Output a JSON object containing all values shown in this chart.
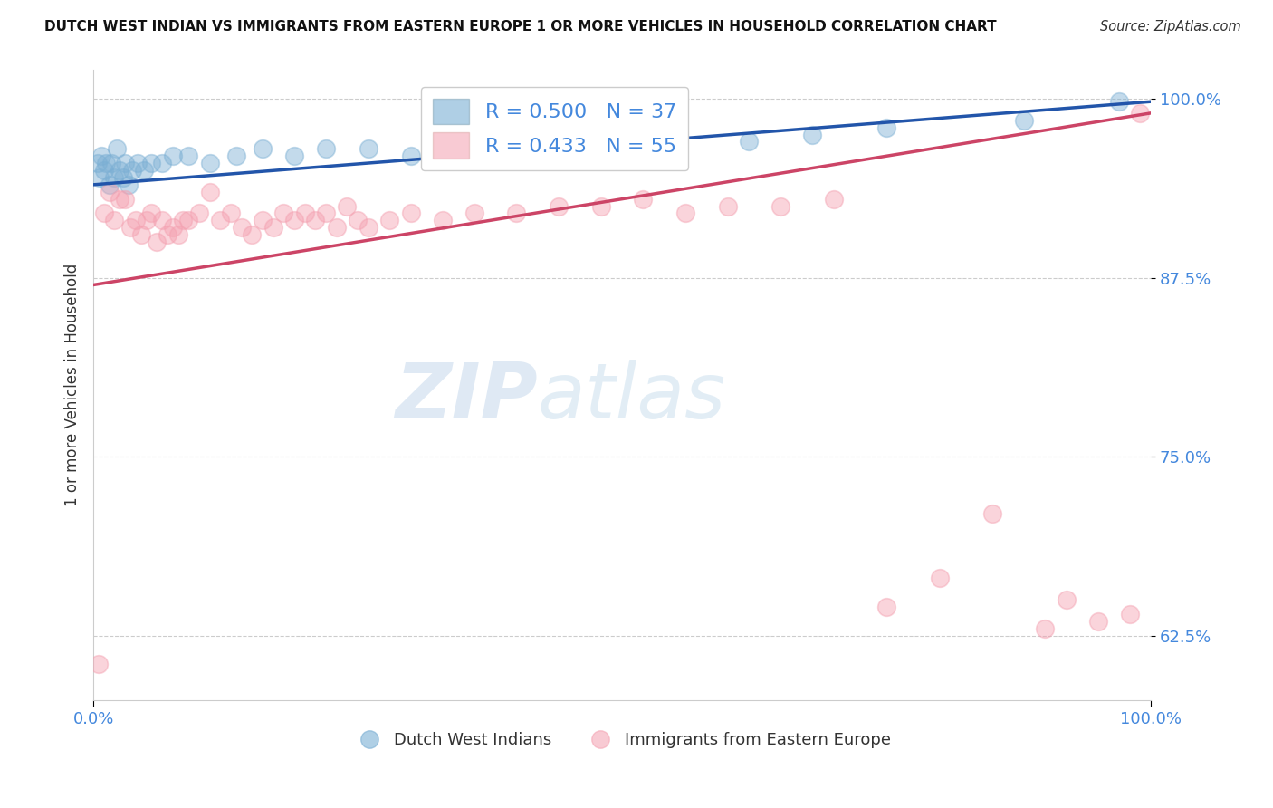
{
  "title": "DUTCH WEST INDIAN VS IMMIGRANTS FROM EASTERN EUROPE 1 OR MORE VEHICLES IN HOUSEHOLD CORRELATION CHART",
  "source_text": "Source: ZipAtlas.com",
  "ylabel": "1 or more Vehicles in Household",
  "xlabel": "",
  "background_color": "#ffffff",
  "blue_color": "#7bafd4",
  "pink_color": "#f4a0b0",
  "blue_line_color": "#2255aa",
  "pink_line_color": "#cc4466",
  "R_blue": 0.5,
  "N_blue": 37,
  "R_pink": 0.433,
  "N_pink": 55,
  "watermark_zip": "ZIP",
  "watermark_atlas": "atlas",
  "blue_x": [
    0.4,
    0.6,
    0.8,
    1.0,
    1.2,
    1.5,
    1.7,
    2.0,
    2.2,
    2.5,
    2.8,
    3.0,
    3.3,
    3.7,
    4.2,
    4.8,
    5.5,
    6.5,
    7.5,
    9.0,
    11.0,
    13.5,
    16.0,
    19.0,
    22.0,
    26.0,
    30.0,
    35.0,
    40.0,
    45.0,
    50.0,
    55.0,
    62.0,
    68.0,
    75.0,
    88.0,
    97.0
  ],
  "blue_y": [
    95.5,
    94.5,
    96.0,
    95.0,
    95.5,
    94.0,
    95.5,
    94.5,
    96.5,
    95.0,
    94.5,
    95.5,
    94.0,
    95.0,
    95.5,
    95.0,
    95.5,
    95.5,
    96.0,
    96.0,
    95.5,
    96.0,
    96.5,
    96.0,
    96.5,
    96.5,
    96.0,
    97.0,
    96.5,
    97.0,
    97.0,
    97.5,
    97.0,
    97.5,
    98.0,
    98.5,
    99.8
  ],
  "pink_x": [
    0.5,
    1.0,
    1.5,
    2.0,
    2.5,
    3.0,
    3.5,
    4.0,
    4.5,
    5.0,
    5.5,
    6.0,
    6.5,
    7.0,
    7.5,
    8.0,
    8.5,
    9.0,
    10.0,
    11.0,
    12.0,
    13.0,
    14.0,
    15.0,
    16.0,
    17.0,
    18.0,
    19.0,
    20.0,
    21.0,
    22.0,
    23.0,
    24.0,
    25.0,
    26.0,
    28.0,
    30.0,
    33.0,
    36.0,
    40.0,
    44.0,
    48.0,
    52.0,
    56.0,
    60.0,
    65.0,
    70.0,
    75.0,
    80.0,
    85.0,
    90.0,
    92.0,
    95.0,
    98.0,
    99.0
  ],
  "pink_y": [
    60.5,
    92.0,
    93.5,
    91.5,
    93.0,
    93.0,
    91.0,
    91.5,
    90.5,
    91.5,
    92.0,
    90.0,
    91.5,
    90.5,
    91.0,
    90.5,
    91.5,
    91.5,
    92.0,
    93.5,
    91.5,
    92.0,
    91.0,
    90.5,
    91.5,
    91.0,
    92.0,
    91.5,
    92.0,
    91.5,
    92.0,
    91.0,
    92.5,
    91.5,
    91.0,
    91.5,
    92.0,
    91.5,
    92.0,
    92.0,
    92.5,
    92.5,
    93.0,
    92.0,
    92.5,
    92.5,
    93.0,
    64.5,
    66.5,
    71.0,
    63.0,
    65.0,
    63.5,
    64.0,
    99.0
  ],
  "xlim": [
    0.0,
    100.0
  ],
  "ylim": [
    58.0,
    102.0
  ],
  "yticks": [
    62.5,
    75.0,
    87.5,
    100.0
  ],
  "ytick_labels": [
    "62.5%",
    "75.0%",
    "87.5%",
    "100.0%"
  ],
  "xtick_labels": [
    "0.0%",
    "100.0%"
  ],
  "blue_line_x0": 0.0,
  "blue_line_y0": 94.0,
  "blue_line_x1": 100.0,
  "blue_line_y1": 99.8,
  "pink_line_x0": 0.0,
  "pink_line_y0": 87.0,
  "pink_line_x1": 100.0,
  "pink_line_y1": 99.0
}
